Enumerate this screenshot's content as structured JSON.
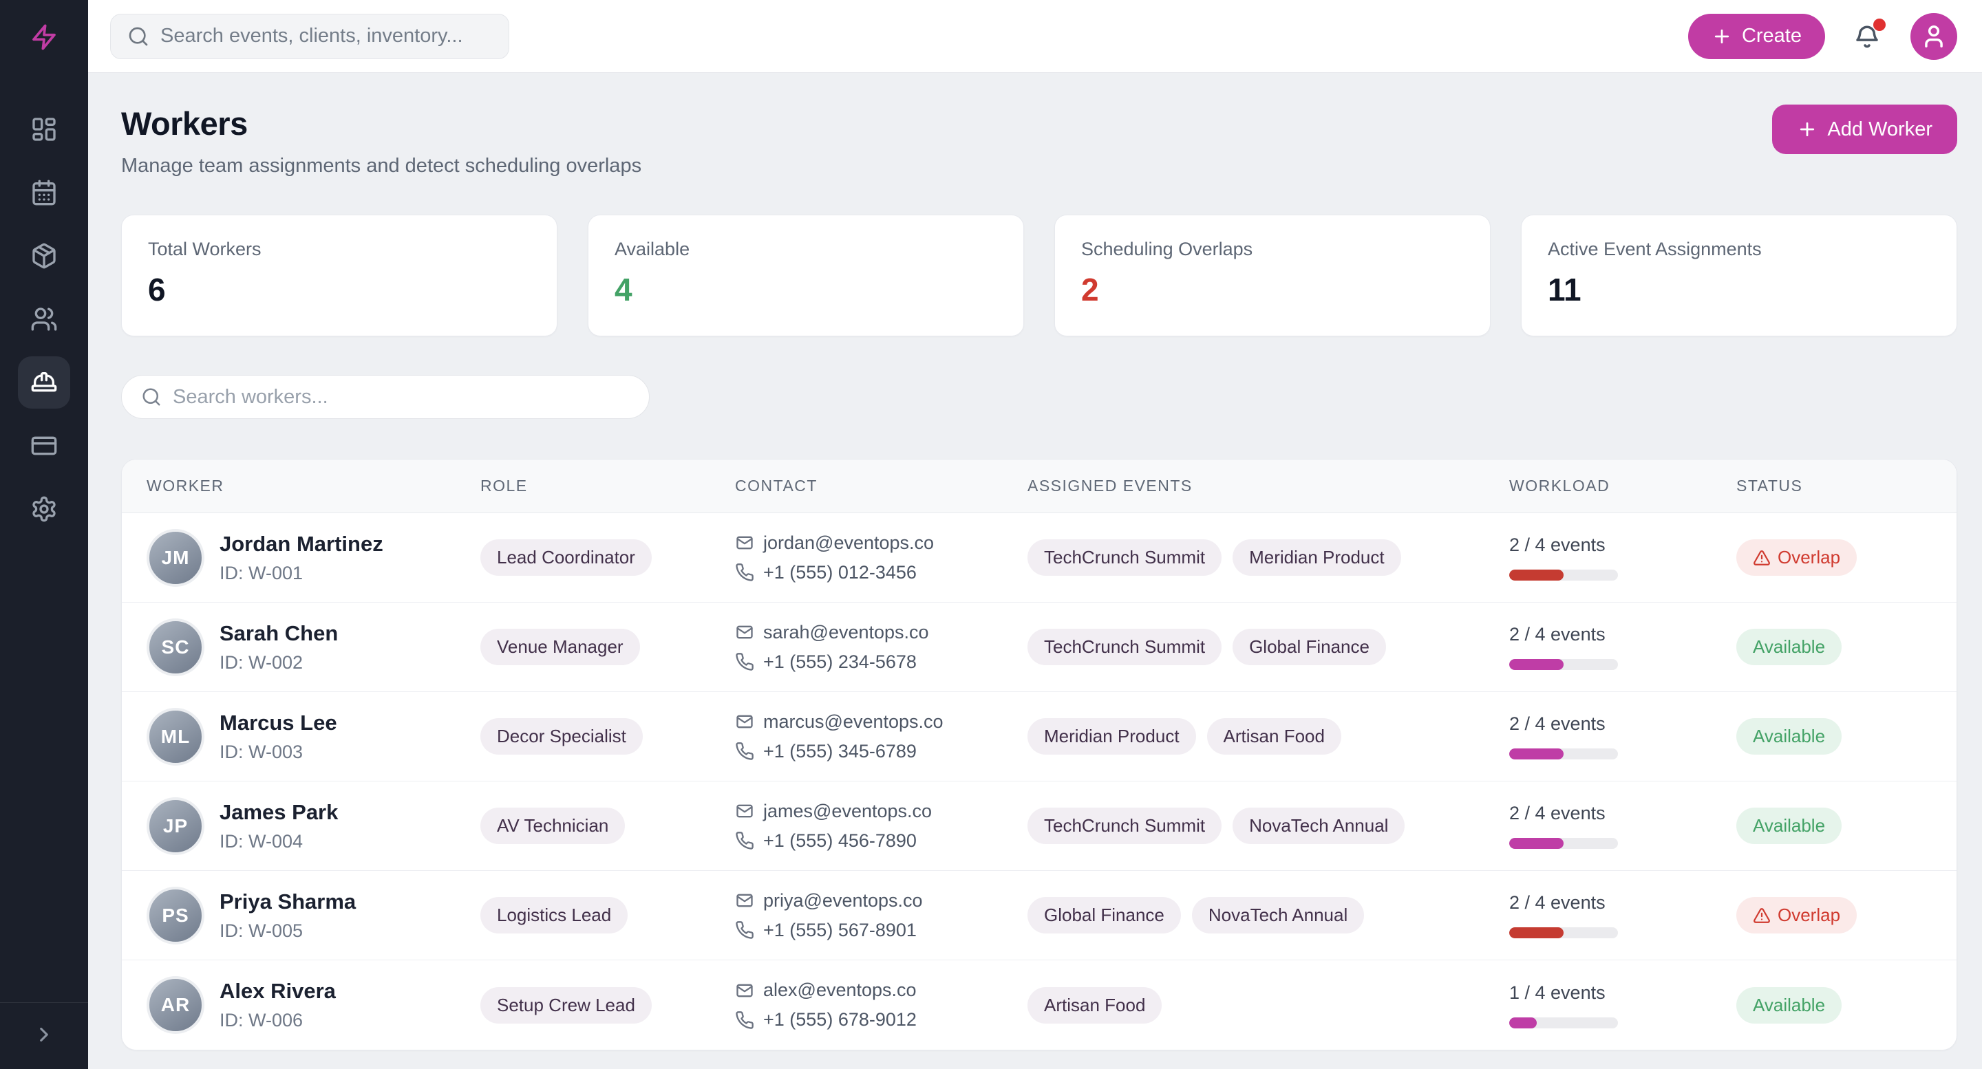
{
  "brand": {
    "accent_color": "#c13ca4",
    "red_color": "#c53b31",
    "green_color": "#43a266"
  },
  "topbar": {
    "search_placeholder": "Search events, clients, inventory...",
    "create_label": "Create",
    "icons": [
      "search-icon",
      "plus-icon",
      "bell-icon",
      "user-icon"
    ]
  },
  "sidebar": {
    "items": [
      "dashboard",
      "calendar",
      "inventory",
      "clients",
      "workers",
      "billing",
      "settings"
    ],
    "active_item": "workers",
    "logo_icon": "lightning-bolt-icon"
  },
  "page": {
    "title": "Workers",
    "subtitle": "Manage team assignments and detect scheduling overlaps",
    "add_worker_label": "Add Worker"
  },
  "stats": [
    {
      "label": "Total Workers",
      "value": "6",
      "value_color": "#101624"
    },
    {
      "label": "Available",
      "value": "4",
      "value_color": "#43a266"
    },
    {
      "label": "Scheduling Overlaps",
      "value": "2",
      "value_color": "#d03a2f"
    },
    {
      "label": "Active Event Assignments",
      "value": "11",
      "value_color": "#101624"
    }
  ],
  "workers_search": {
    "placeholder": "Search workers..."
  },
  "table": {
    "columns": [
      "WORKER",
      "ROLE",
      "CONTACT",
      "ASSIGNED EVENTS",
      "WORKLOAD",
      "STATUS"
    ],
    "rows": [
      {
        "name": "Jordan Martinez",
        "id": "ID: W-001",
        "role": "Lead Coordinator",
        "email": "jordan@eventops.co",
        "phone": "+1 (555) 012-3456",
        "events": [
          "TechCrunch Summit",
          "Meridian Product"
        ],
        "workload": {
          "label": "2 / 4 events",
          "percent": 50,
          "color": "#c53b31"
        },
        "status": {
          "type": "overlap",
          "label": "Overlap"
        }
      },
      {
        "name": "Sarah Chen",
        "id": "ID: W-002",
        "role": "Venue Manager",
        "email": "sarah@eventops.co",
        "phone": "+1 (555) 234-5678",
        "events": [
          "TechCrunch Summit",
          "Global Finance"
        ],
        "workload": {
          "label": "2 / 4 events",
          "percent": 50,
          "color": "#bf3da6"
        },
        "status": {
          "type": "available",
          "label": "Available"
        }
      },
      {
        "name": "Marcus Lee",
        "id": "ID: W-003",
        "role": "Decor Specialist",
        "email": "marcus@eventops.co",
        "phone": "+1 (555) 345-6789",
        "events": [
          "Meridian Product",
          "Artisan Food"
        ],
        "workload": {
          "label": "2 / 4 events",
          "percent": 50,
          "color": "#bf3da6"
        },
        "status": {
          "type": "available",
          "label": "Available"
        }
      },
      {
        "name": "James Park",
        "id": "ID: W-004",
        "role": "AV Technician",
        "email": "james@eventops.co",
        "phone": "+1 (555) 456-7890",
        "events": [
          "TechCrunch Summit",
          "NovaTech Annual"
        ],
        "workload": {
          "label": "2 / 4 events",
          "percent": 50,
          "color": "#bf3da6"
        },
        "status": {
          "type": "available",
          "label": "Available"
        }
      },
      {
        "name": "Priya Sharma",
        "id": "ID: W-005",
        "role": "Logistics Lead",
        "email": "priya@eventops.co",
        "phone": "+1 (555) 567-8901",
        "events": [
          "Global Finance",
          "NovaTech Annual"
        ],
        "workload": {
          "label": "2 / 4 events",
          "percent": 50,
          "color": "#c53b31"
        },
        "status": {
          "type": "overlap",
          "label": "Overlap"
        }
      },
      {
        "name": "Alex Rivera",
        "id": "ID: W-006",
        "role": "Setup Crew Lead",
        "email": "alex@eventops.co",
        "phone": "+1 (555) 678-9012",
        "events": [
          "Artisan Food"
        ],
        "workload": {
          "label": "1 / 4 events",
          "percent": 25,
          "color": "#bf3da6"
        },
        "status": {
          "type": "available",
          "label": "Available"
        }
      }
    ]
  }
}
